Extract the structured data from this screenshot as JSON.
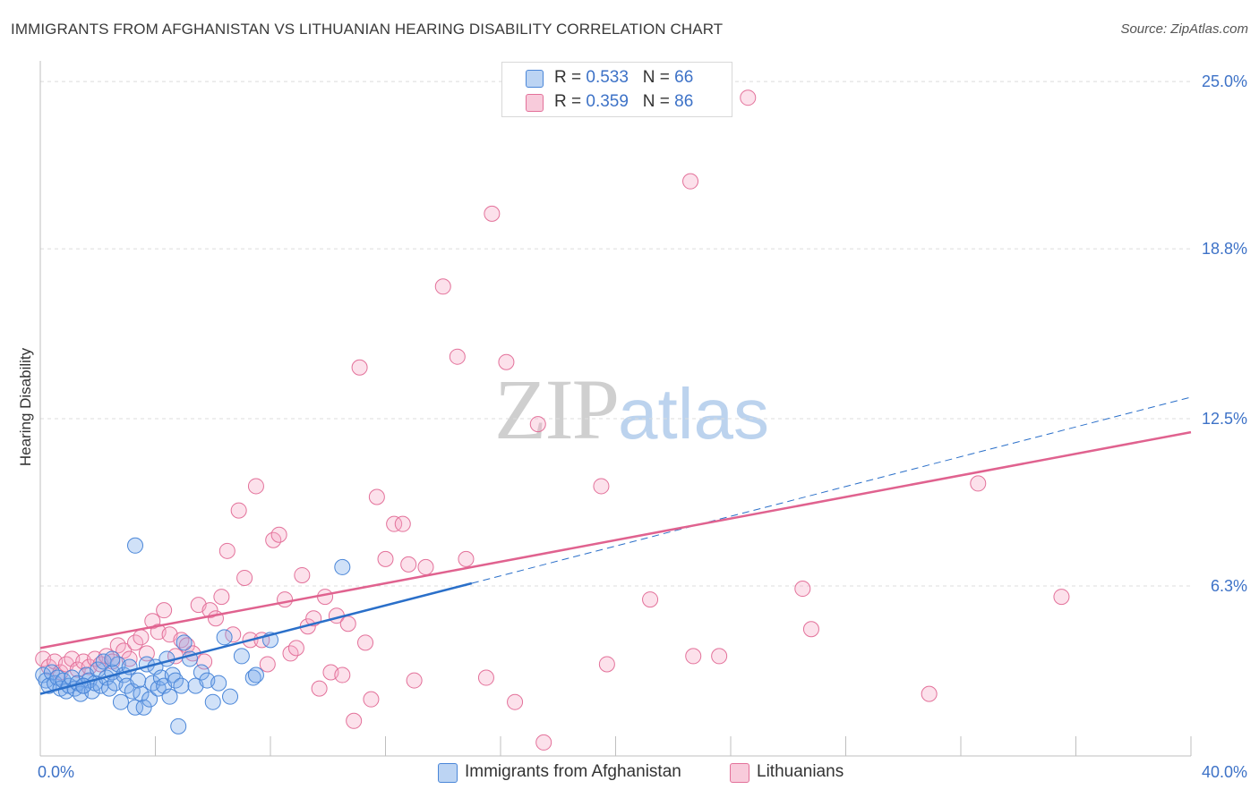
{
  "header": {
    "title": "IMMIGRANTS FROM AFGHANISTAN VS LITHUANIAN HEARING DISABILITY CORRELATION CHART",
    "source": "Source: ZipAtlas.com"
  },
  "watermark": {
    "zip": "ZIP",
    "atlas": "atlas"
  },
  "legend": {
    "rows": [
      {
        "r_label": "R = ",
        "r_value": "0.533",
        "n_label": "N = ",
        "n_value": "66",
        "color": "#4a86d8"
      },
      {
        "r_label": "R = ",
        "r_value": "0.359",
        "n_label": "N = ",
        "n_value": "86",
        "color": "#e3719a"
      }
    ]
  },
  "bottom_legend": [
    {
      "label": "Immigrants from Afghanistan",
      "color": "#4a86d8"
    },
    {
      "label": "Lithuanians",
      "color": "#e3719a"
    }
  ],
  "colors": {
    "blue": "#4a86d8",
    "blue_line": "#2a6fc9",
    "pink": "#e3719a",
    "pink_line": "#e0628f",
    "tick_label": "#3d72c7",
    "grid": "#dcdcdc"
  },
  "chart_data": {
    "type": "scatter",
    "title": "IMMIGRANTS FROM AFGHANISTAN VS LITHUANIAN HEARING DISABILITY CORRELATION CHART",
    "xlabel": "",
    "ylabel": "Hearing Disability",
    "xlim": [
      0,
      40
    ],
    "ylim": [
      0,
      25.6
    ],
    "x_tick_labels": [
      "0.0%",
      "40.0%"
    ],
    "y_ticks": [
      6.3,
      12.5,
      18.8,
      25.0
    ],
    "y_tick_labels": [
      "6.3%",
      "12.5%",
      "18.8%",
      "25.0%"
    ],
    "series": [
      {
        "name": "Immigrants from Afghanistan",
        "r": 0.533,
        "n": 66,
        "trend": {
          "x": [
            0,
            15
          ],
          "y": [
            2.3,
            6.4
          ]
        },
        "trend_extension": {
          "x": [
            15,
            40
          ],
          "y": [
            6.4,
            13.3
          ]
        },
        "points": [
          [
            0.1,
            3.0
          ],
          [
            0.2,
            2.8
          ],
          [
            0.3,
            2.6
          ],
          [
            0.4,
            3.1
          ],
          [
            0.5,
            2.7
          ],
          [
            0.6,
            2.9
          ],
          [
            0.7,
            2.5
          ],
          [
            0.8,
            2.8
          ],
          [
            0.9,
            2.4
          ],
          [
            1.0,
            2.6
          ],
          [
            1.1,
            2.9
          ],
          [
            1.2,
            2.5
          ],
          [
            1.3,
            2.7
          ],
          [
            1.4,
            2.3
          ],
          [
            1.5,
            2.6
          ],
          [
            1.6,
            3.0
          ],
          [
            1.7,
            2.8
          ],
          [
            1.8,
            2.4
          ],
          [
            1.9,
            2.7
          ],
          [
            2.0,
            3.2
          ],
          [
            2.1,
            2.6
          ],
          [
            2.2,
            3.5
          ],
          [
            2.3,
            2.9
          ],
          [
            2.4,
            2.5
          ],
          [
            2.5,
            3.1
          ],
          [
            2.6,
            2.7
          ],
          [
            2.7,
            3.4
          ],
          [
            2.8,
            2.0
          ],
          [
            2.9,
            3.0
          ],
          [
            3.0,
            2.6
          ],
          [
            3.1,
            3.3
          ],
          [
            3.2,
            2.4
          ],
          [
            3.3,
            1.8
          ],
          [
            3.4,
            2.8
          ],
          [
            3.5,
            2.3
          ],
          [
            3.6,
            1.8
          ],
          [
            3.7,
            3.4
          ],
          [
            3.8,
            2.1
          ],
          [
            3.9,
            2.7
          ],
          [
            4.0,
            3.3
          ],
          [
            4.1,
            2.5
          ],
          [
            4.2,
            2.9
          ],
          [
            4.3,
            2.6
          ],
          [
            4.4,
            3.6
          ],
          [
            4.5,
            2.2
          ],
          [
            4.6,
            3.0
          ],
          [
            4.7,
            2.8
          ],
          [
            4.8,
            1.1
          ],
          [
            4.9,
            2.6
          ],
          [
            5.0,
            4.2
          ],
          [
            5.2,
            3.6
          ],
          [
            5.4,
            2.6
          ],
          [
            5.6,
            3.1
          ],
          [
            5.8,
            2.8
          ],
          [
            6.0,
            2.0
          ],
          [
            6.2,
            2.7
          ],
          [
            6.4,
            4.4
          ],
          [
            6.6,
            2.2
          ],
          [
            7.0,
            3.7
          ],
          [
            7.4,
            2.9
          ],
          [
            1.5,
            2.6
          ],
          [
            2.5,
            3.6
          ],
          [
            3.3,
            7.8
          ],
          [
            7.5,
            3.0
          ],
          [
            8.0,
            4.3
          ],
          [
            10.5,
            7.0
          ]
        ]
      },
      {
        "name": "Lithuanians",
        "r": 0.359,
        "n": 86,
        "trend": {
          "x": [
            0,
            40
          ],
          "y": [
            4.0,
            12.0
          ]
        },
        "points": [
          [
            0.1,
            3.6
          ],
          [
            0.3,
            3.3
          ],
          [
            0.5,
            3.5
          ],
          [
            0.7,
            3.1
          ],
          [
            0.9,
            3.4
          ],
          [
            1.1,
            3.6
          ],
          [
            1.3,
            3.2
          ],
          [
            1.5,
            3.5
          ],
          [
            1.7,
            3.3
          ],
          [
            1.9,
            3.6
          ],
          [
            2.1,
            3.4
          ],
          [
            2.3,
            3.7
          ],
          [
            2.5,
            3.5
          ],
          [
            2.7,
            4.1
          ],
          [
            2.9,
            3.9
          ],
          [
            3.1,
            3.6
          ],
          [
            3.3,
            4.2
          ],
          [
            3.5,
            4.4
          ],
          [
            3.7,
            3.8
          ],
          [
            3.9,
            5.0
          ],
          [
            4.1,
            4.6
          ],
          [
            4.3,
            5.4
          ],
          [
            4.5,
            4.5
          ],
          [
            4.7,
            3.7
          ],
          [
            4.9,
            4.3
          ],
          [
            5.1,
            4.1
          ],
          [
            5.3,
            3.8
          ],
          [
            5.5,
            5.6
          ],
          [
            5.7,
            3.5
          ],
          [
            5.9,
            5.4
          ],
          [
            6.1,
            5.1
          ],
          [
            6.3,
            5.9
          ],
          [
            6.5,
            7.6
          ],
          [
            6.7,
            4.5
          ],
          [
            6.9,
            9.1
          ],
          [
            7.1,
            6.6
          ],
          [
            7.3,
            4.3
          ],
          [
            7.5,
            10.0
          ],
          [
            7.7,
            4.3
          ],
          [
            7.9,
            3.4
          ],
          [
            8.1,
            8.0
          ],
          [
            8.3,
            8.2
          ],
          [
            8.5,
            5.8
          ],
          [
            8.7,
            3.8
          ],
          [
            8.9,
            4.0
          ],
          [
            9.1,
            6.7
          ],
          [
            9.3,
            4.8
          ],
          [
            9.5,
            5.1
          ],
          [
            9.7,
            2.5
          ],
          [
            9.9,
            5.9
          ],
          [
            10.1,
            3.1
          ],
          [
            10.3,
            5.2
          ],
          [
            10.5,
            3.0
          ],
          [
            10.7,
            4.9
          ],
          [
            10.9,
            1.3
          ],
          [
            11.1,
            14.4
          ],
          [
            11.3,
            4.2
          ],
          [
            11.5,
            2.1
          ],
          [
            11.7,
            9.6
          ],
          [
            12.0,
            7.3
          ],
          [
            12.3,
            8.6
          ],
          [
            12.6,
            8.6
          ],
          [
            12.8,
            7.1
          ],
          [
            13.0,
            2.8
          ],
          [
            13.4,
            7.0
          ],
          [
            14.0,
            17.4
          ],
          [
            14.5,
            14.8
          ],
          [
            14.8,
            7.3
          ],
          [
            15.5,
            2.9
          ],
          [
            15.7,
            20.1
          ],
          [
            16.2,
            14.6
          ],
          [
            16.5,
            2.0
          ],
          [
            17.3,
            12.3
          ],
          [
            17.5,
            0.5
          ],
          [
            19.5,
            10.0
          ],
          [
            19.7,
            3.4
          ],
          [
            21.2,
            5.8
          ],
          [
            22.6,
            21.3
          ],
          [
            22.7,
            3.7
          ],
          [
            23.6,
            3.7
          ],
          [
            24.6,
            24.4
          ],
          [
            26.5,
            6.2
          ],
          [
            26.8,
            4.7
          ],
          [
            30.9,
            2.3
          ],
          [
            32.6,
            10.1
          ],
          [
            35.5,
            5.9
          ]
        ]
      }
    ]
  }
}
